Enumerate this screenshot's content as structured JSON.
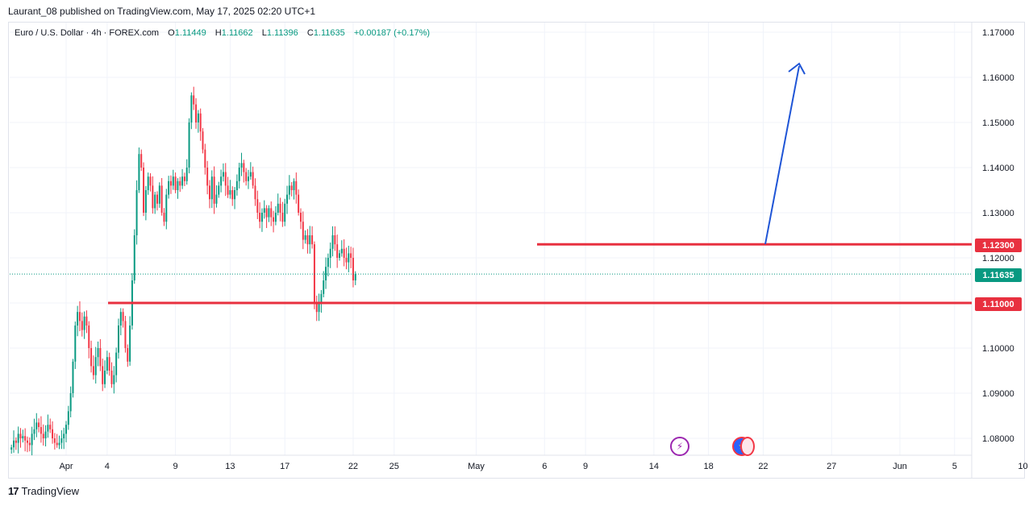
{
  "header": {
    "publish_text": "Laurant_08 published on TradingView.com, May 17, 2025 02:20 UTC+1"
  },
  "legend": {
    "symbol": "Euro / U.S. Dollar · 4h · FOREX.com",
    "o_label": "O",
    "o_value": "1.11449",
    "h_label": "H",
    "h_value": "1.11662",
    "l_label": "L",
    "l_value": "1.11396",
    "c_label": "C",
    "c_value": "1.11635",
    "change": "+0.00187 (+0.17%)"
  },
  "footer": {
    "brand": "TradingView",
    "brand_mark": "17"
  },
  "colors": {
    "up": "#089981",
    "down": "#f23645",
    "level_line": "#e8303f",
    "arrow": "#1f55d6",
    "grid": "#f0f3fa",
    "current_price_tag": "#089981"
  },
  "events": [
    {
      "icon": "lightning-icon",
      "glyph": "⚡",
      "color": "#9c27b0",
      "x_index": 92
    },
    {
      "icon": "eu-flag-icon",
      "glyph": "★",
      "color": "#2962ff",
      "x_index": 105
    }
  ],
  "price_tags": {
    "resistance": "1.12300",
    "current": "1.11635",
    "support": "1.11000"
  },
  "chart_data": {
    "type": "candlestick",
    "title": "Euro / U.S. Dollar · 4h · FOREX.com",
    "xlabel": "",
    "ylabel": "",
    "ylim": [
      1.0765,
      1.1712
    ],
    "y_ticks": [
      "1.17000",
      "1.16000",
      "1.15000",
      "1.14000",
      "1.13000",
      "1.12000",
      "1.11000",
      "1.10000",
      "1.09000",
      "1.08000"
    ],
    "y_tick_values": [
      1.17,
      1.16,
      1.15,
      1.14,
      1.13,
      1.12,
      1.11,
      1.1,
      1.09,
      1.08
    ],
    "x_ticks": [
      {
        "label": "Apr",
        "day": 0
      },
      {
        "label": "4",
        "day": 3
      },
      {
        "label": "9",
        "day": 8
      },
      {
        "label": "13",
        "day": 12
      },
      {
        "label": "17",
        "day": 16
      },
      {
        "label": "22",
        "day": 21
      },
      {
        "label": "25",
        "day": 24
      },
      {
        "label": "May",
        "day": 30
      },
      {
        "label": "6",
        "day": 35
      },
      {
        "label": "9",
        "day": 38
      },
      {
        "label": "14",
        "day": 43
      },
      {
        "label": "18",
        "day": 47
      },
      {
        "label": "22",
        "day": 51
      },
      {
        "label": "27",
        "day": 56
      },
      {
        "label": "Jun",
        "day": 61
      },
      {
        "label": "5",
        "day": 65
      },
      {
        "label": "10",
        "day": 70
      }
    ],
    "grid": true,
    "candles_per_day": 6,
    "first_candle_day": -4.0,
    "closes": [
      1.078,
      1.0795,
      1.079,
      1.081,
      1.08,
      1.0805,
      1.0795,
      1.079,
      1.0785,
      1.081,
      1.082,
      1.0835,
      1.0825,
      1.081,
      1.08,
      1.0815,
      1.083,
      1.082,
      1.08,
      1.079,
      1.0785,
      1.079,
      1.08,
      1.081,
      1.083,
      1.086,
      1.09,
      1.097,
      1.105,
      1.108,
      1.106,
      1.104,
      1.107,
      1.105,
      1.1,
      1.096,
      1.094,
      1.098,
      1.1,
      1.096,
      1.092,
      1.095,
      1.098,
      1.095,
      1.092,
      1.094,
      1.099,
      1.105,
      1.108,
      1.106,
      1.1,
      1.097,
      1.105,
      1.115,
      1.125,
      1.135,
      1.143,
      1.14,
      1.13,
      1.135,
      1.138,
      1.136,
      1.131,
      1.134,
      1.132,
      1.136,
      1.13,
      1.128,
      1.134,
      1.137,
      1.136,
      1.138,
      1.135,
      1.137,
      1.136,
      1.138,
      1.137,
      1.14,
      1.15,
      1.156,
      1.154,
      1.15,
      1.152,
      1.148,
      1.144,
      1.14,
      1.136,
      1.133,
      1.138,
      1.132,
      1.134,
      1.136,
      1.138,
      1.139,
      1.136,
      1.134,
      1.135,
      1.133,
      1.135,
      1.137,
      1.14,
      1.141,
      1.139,
      1.137,
      1.138,
      1.139,
      1.136,
      1.133,
      1.13,
      1.128,
      1.13,
      1.131,
      1.129,
      1.131,
      1.129,
      1.128,
      1.13,
      1.132,
      1.13,
      1.128,
      1.132,
      1.134,
      1.136,
      1.135,
      1.137,
      1.134,
      1.13,
      1.128,
      1.124,
      1.125,
      1.123,
      1.125,
      1.123,
      1.11,
      1.108,
      1.11,
      1.112,
      1.115,
      1.118,
      1.12,
      1.122,
      1.125,
      1.123,
      1.12,
      1.121,
      1.122,
      1.12,
      1.119,
      1.121,
      1.12,
      1.115,
      1.1164
    ]
  }
}
